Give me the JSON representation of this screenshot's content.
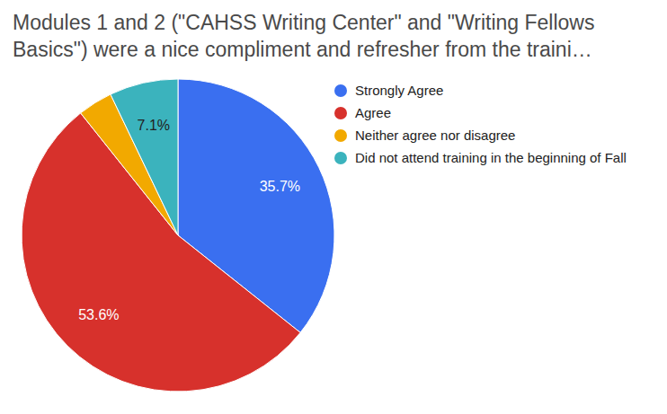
{
  "chart_data": {
    "type": "pie",
    "title": "Modules 1 and 2 (\"CAHSS Writing Center\" and \"Writing Fellows Basics\") were a nice compliment and refresher from the traini…",
    "categories": [
      "Strongly Agree",
      "Agree",
      "Neither agree nor disagree",
      "Did not attend training in the beginning of Fall"
    ],
    "values": [
      35.7,
      53.6,
      3.6,
      7.1
    ],
    "value_labels": [
      "35.7%",
      "53.6%",
      null,
      "7.1%"
    ],
    "colors": [
      "#3a6ff0",
      "#d7312c",
      "#f2a900",
      "#3bb3bd"
    ],
    "data_labels": true,
    "legend": "right"
  }
}
